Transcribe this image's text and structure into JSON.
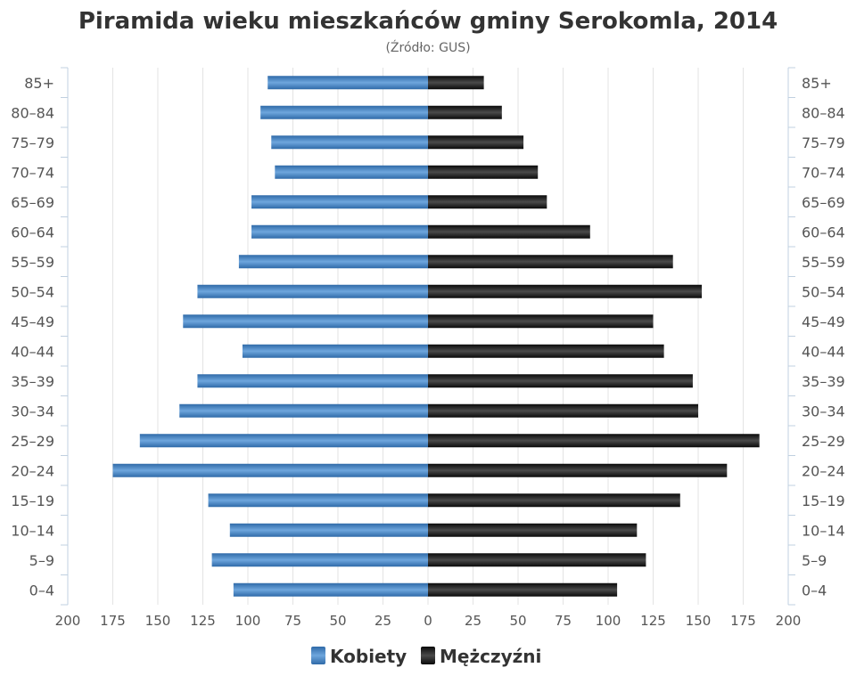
{
  "chart_data": {
    "type": "bar",
    "orientation": "horizontal-pyramid",
    "title": "Piramida wieku mieszkańców gminy Serokomla, 2014",
    "subtitle": "(Źródło: GUS)",
    "categories": [
      "85+",
      "80–84",
      "75–79",
      "70–74",
      "65–69",
      "60–64",
      "55–59",
      "50–54",
      "45–49",
      "40–44",
      "35–39",
      "30–34",
      "25–29",
      "20–24",
      "15–19",
      "10–14",
      "5–9",
      "0–4"
    ],
    "series": [
      {
        "name": "Kobiety",
        "color": "#4a86c5",
        "side": "left",
        "values": [
          89,
          93,
          87,
          85,
          98,
          98,
          105,
          128,
          136,
          103,
          128,
          138,
          160,
          175,
          122,
          110,
          120,
          108
        ]
      },
      {
        "name": "Mężczyźni",
        "color": "#222222",
        "side": "right",
        "values": [
          31,
          41,
          53,
          61,
          66,
          90,
          136,
          152,
          125,
          131,
          147,
          150,
          184,
          166,
          140,
          116,
          121,
          105
        ]
      }
    ],
    "xlim": [
      -200,
      200
    ],
    "xticks": [
      "200",
      "175",
      "150",
      "125",
      "100",
      "75",
      "50",
      "25",
      "0",
      "25",
      "50",
      "75",
      "100",
      "125",
      "150",
      "175",
      "200"
    ],
    "grid": true,
    "legend": "bottom-center"
  }
}
